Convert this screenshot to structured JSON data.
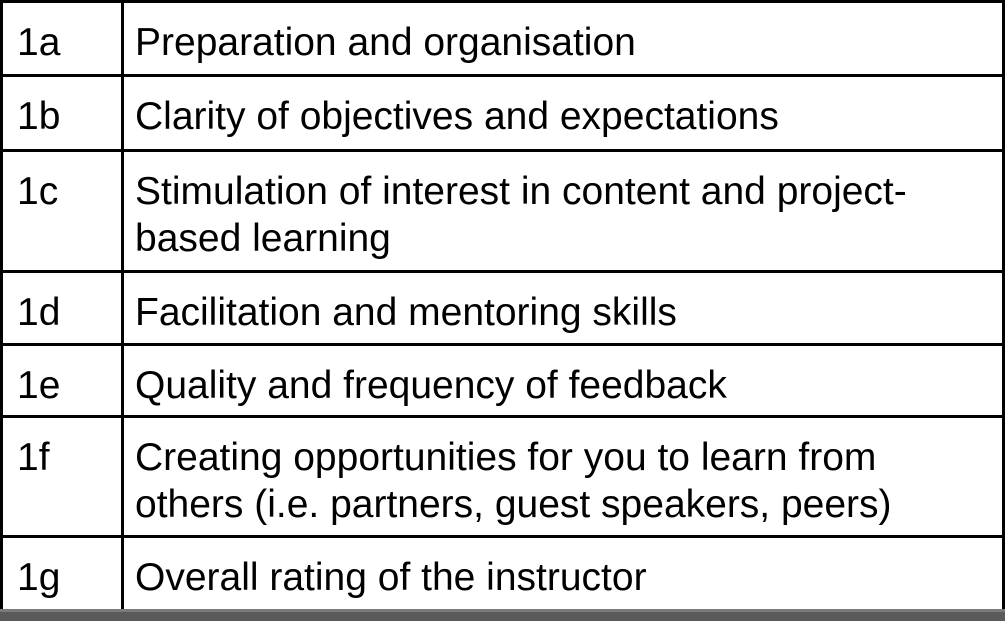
{
  "table": {
    "rows": [
      {
        "id": "1a",
        "text": "Preparation and organisation"
      },
      {
        "id": "1b",
        "text": "Clarity of objectives and expectations"
      },
      {
        "id": "1c",
        "text": "Stimulation of interest in content and project-based learning"
      },
      {
        "id": "1d",
        "text": "Facilitation and mentoring skills"
      },
      {
        "id": "1e",
        "text": "Quality and frequency of feedback"
      },
      {
        "id": "1f",
        "text": "Creating opportunities for you to learn from others (i.e. partners, guest speakers, peers)"
      },
      {
        "id": "1g",
        "text": "Overall rating of the instructor"
      }
    ]
  }
}
